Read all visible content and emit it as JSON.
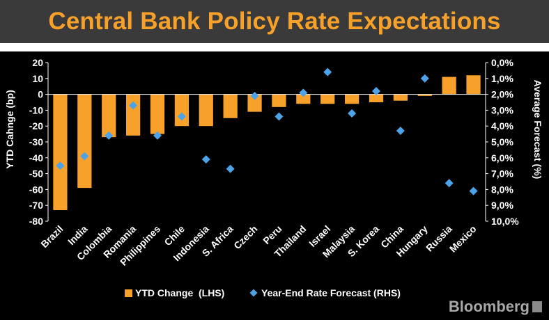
{
  "header": {
    "title": "Central Bank Policy Rate Expectations"
  },
  "brand": {
    "name": "Bloomberg",
    "icon": "bloomberg-terminal-icon"
  },
  "chart_data": {
    "type": "bar",
    "categories": [
      "Brazil",
      "India",
      "Colombia",
      "Romania",
      "Philippines",
      "Chile",
      "Indonesia",
      "S. Africa",
      "Czech",
      "Peru",
      "Thailand",
      "Israel",
      "Malaysia",
      "S. Korea",
      "China",
      "Hungary",
      "Russia",
      "Mexico"
    ],
    "series": [
      {
        "name": "YTD Change  (LHS)",
        "type": "bar",
        "axis": "left",
        "color": "#f7a12b",
        "values": [
          -73,
          -59,
          -27,
          -26,
          -25,
          -20,
          -20,
          -15,
          -11,
          -8,
          -6,
          -6,
          -6,
          -5,
          -4,
          -1,
          11,
          12
        ]
      },
      {
        "name": "Year-End Rate Forecast (RHS)",
        "type": "scatter",
        "axis": "right",
        "marker": "diamond",
        "color": "#4da3e8",
        "values": [
          6.5,
          5.9,
          4.6,
          2.7,
          4.6,
          3.4,
          6.1,
          6.7,
          2.1,
          3.4,
          1.9,
          0.6,
          3.2,
          1.8,
          4.3,
          1.0,
          7.6,
          8.1
        ]
      }
    ],
    "title": "Central Bank Policy Rate Expectations",
    "ylabel": "YTD Cahnge (bp)",
    "y2label": "Average Forecast (%)",
    "ylim": [
      -80,
      20
    ],
    "y_ticks": [
      20,
      10,
      0,
      -10,
      -20,
      -30,
      -40,
      -50,
      -60,
      -70,
      -80
    ],
    "y2lim": [
      0,
      10
    ],
    "y2_inverted": true,
    "y2_tick_labels": [
      "0,0%",
      "1,0%",
      "2,0%",
      "3,0%",
      "4,0%",
      "5,0%",
      "6,0%",
      "7,0%",
      "8,0%",
      "9,0%",
      "10,0%"
    ],
    "grid": false,
    "legend": "bottom-center"
  }
}
